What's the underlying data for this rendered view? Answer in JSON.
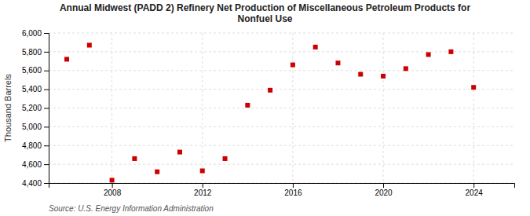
{
  "chart_data": {
    "type": "scatter",
    "title": "Annual Midwest (PADD 2) Refinery Net Production of Miscellaneous Petroleum Products for\nNonfuel Use",
    "ylabel": "Thousand Barrels",
    "source": "Source: U.S. Energy Information Administration",
    "x": [
      2006,
      2007,
      2008,
      2009,
      2010,
      2011,
      2012,
      2013,
      2014,
      2015,
      2016,
      2017,
      2018,
      2019,
      2020,
      2021,
      2022,
      2023,
      2024
    ],
    "values": [
      5720,
      5870,
      4430,
      4660,
      4520,
      4730,
      4530,
      4660,
      5230,
      5390,
      5660,
      5850,
      5680,
      5560,
      5540,
      5620,
      5770,
      5800,
      5420
    ],
    "color": "#cc0000",
    "marker": "square",
    "xlim": [
      2005.2,
      2025.8
    ],
    "xticks": [
      2008,
      2012,
      2016,
      2020,
      2024
    ],
    "ylim": [
      4400,
      6000
    ],
    "yticks": [
      {
        "value": 4400,
        "label": "4,400"
      },
      {
        "value": 4600,
        "label": "4,600"
      },
      {
        "value": 4800,
        "label": "4,800"
      },
      {
        "value": 5000,
        "label": "5,000"
      },
      {
        "value": 5200,
        "label": "5,200"
      },
      {
        "value": 5400,
        "label": "5,400"
      },
      {
        "value": 5600,
        "label": "5,600"
      },
      {
        "value": 5800,
        "label": "5,800"
      },
      {
        "value": 6000,
        "label": "6,000"
      }
    ],
    "grid": true
  }
}
